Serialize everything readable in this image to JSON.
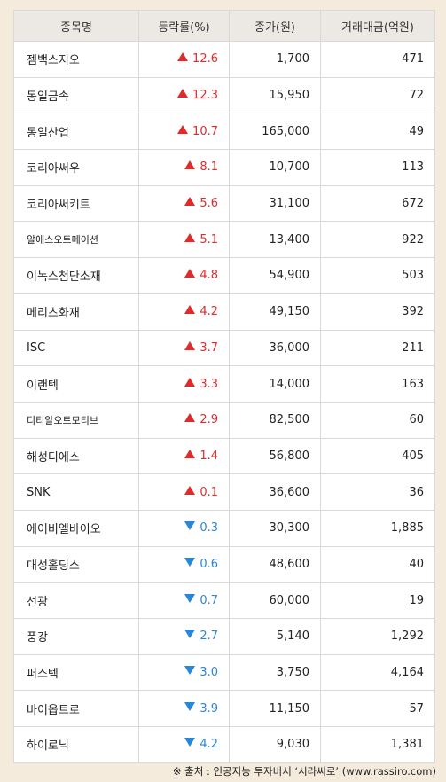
{
  "headers": [
    "종목명",
    "등락률(%)",
    "종가(원)",
    "거래대금(억원)"
  ],
  "rows": [
    {
      "name": "젬백스지오",
      "dir": "up",
      "change": "12.6",
      "price": "1,700",
      "volume": "471"
    },
    {
      "name": "동일금속",
      "dir": "up",
      "change": "12.3",
      "price": "15,950",
      "volume": "72"
    },
    {
      "name": "동일산업",
      "dir": "up",
      "change": "10.7",
      "price": "165,000",
      "volume": "49"
    },
    {
      "name": "코리아써우",
      "dir": "up",
      "change": "8.1",
      "price": "10,700",
      "volume": "113"
    },
    {
      "name": "코리아써키트",
      "dir": "up",
      "change": "5.6",
      "price": "31,100",
      "volume": "672"
    },
    {
      "name": "알에스오토메이션",
      "dir": "up",
      "change": "5.1",
      "price": "13,400",
      "volume": "922",
      "small": true
    },
    {
      "name": "이녹스첨단소재",
      "dir": "up",
      "change": "4.8",
      "price": "54,900",
      "volume": "503"
    },
    {
      "name": "메리츠화재",
      "dir": "up",
      "change": "4.2",
      "price": "49,150",
      "volume": "392"
    },
    {
      "name": "ISC",
      "dir": "up",
      "change": "3.7",
      "price": "36,000",
      "volume": "211"
    },
    {
      "name": "이랜텍",
      "dir": "up",
      "change": "3.3",
      "price": "14,000",
      "volume": "163"
    },
    {
      "name": "디티알오토모티브",
      "dir": "up",
      "change": "2.9",
      "price": "82,500",
      "volume": "60",
      "small": true
    },
    {
      "name": "해성디에스",
      "dir": "up",
      "change": "1.4",
      "price": "56,800",
      "volume": "405"
    },
    {
      "name": "SNK",
      "dir": "up",
      "change": "0.1",
      "price": "36,600",
      "volume": "36"
    },
    {
      "name": "에이비엘바이오",
      "dir": "down",
      "change": "0.3",
      "price": "30,300",
      "volume": "1,885"
    },
    {
      "name": "대성홀딩스",
      "dir": "down",
      "change": "0.6",
      "price": "48,600",
      "volume": "40"
    },
    {
      "name": "선광",
      "dir": "down",
      "change": "0.7",
      "price": "60,000",
      "volume": "19"
    },
    {
      "name": "풍강",
      "dir": "down",
      "change": "2.7",
      "price": "5,140",
      "volume": "1,292"
    },
    {
      "name": "퍼스텍",
      "dir": "down",
      "change": "3.0",
      "price": "3,750",
      "volume": "4,164"
    },
    {
      "name": "바이옵트로",
      "dir": "down",
      "change": "3.9",
      "price": "11,150",
      "volume": "57"
    },
    {
      "name": "하이로닉",
      "dir": "down",
      "change": "4.2",
      "price": "9,030",
      "volume": "1,381"
    }
  ],
  "source": "※ 출처 : 인공지능 투자비서 ‘시라씨로’ (www.rassiro.com)",
  "colors": {
    "up": "#e12b2b",
    "down": "#2a86d8",
    "header_bg": "#ece9e4",
    "page_bg": "#f4ebdc"
  }
}
